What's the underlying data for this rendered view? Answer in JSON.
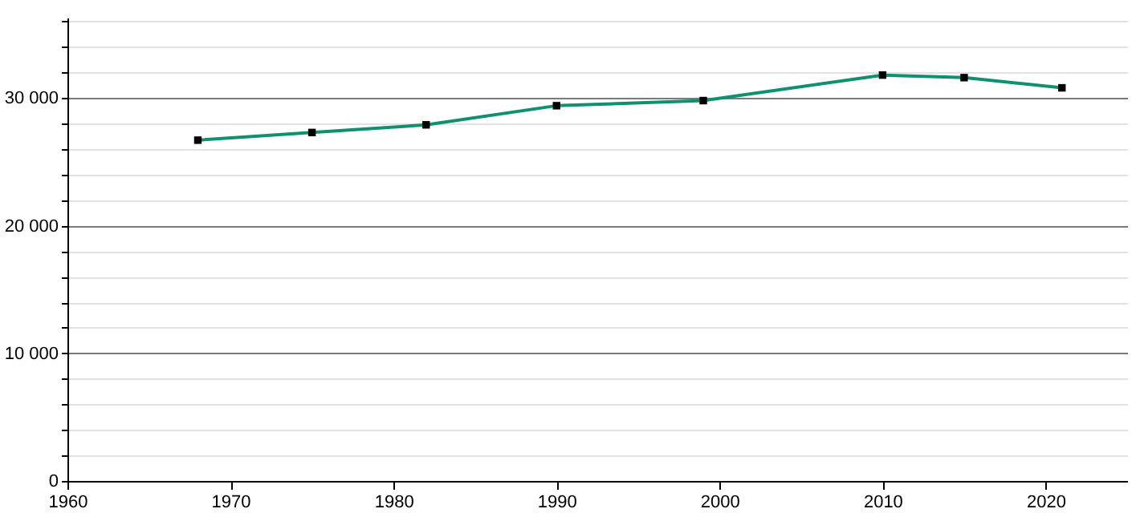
{
  "chart_data": {
    "type": "line",
    "x": [
      1968,
      1975,
      1982,
      1990,
      1999,
      2010,
      2015,
      2021
    ],
    "series": [
      {
        "color": "#0e9170",
        "values": [
          26700,
          27300,
          27900,
          29400,
          29800,
          31800,
          31600,
          30800
        ]
      }
    ],
    "xlim": [
      1960,
      2025
    ],
    "xticks": [
      1960,
      1970,
      1980,
      1990,
      2000,
      2010,
      2020
    ],
    "ylim": [
      0,
      36300
    ],
    "yticks": [
      {
        "value": 0,
        "label": "0"
      },
      {
        "value": 2000,
        "label": null
      },
      {
        "value": 4000,
        "label": null
      },
      {
        "value": 6000,
        "label": null
      },
      {
        "value": 8000,
        "label": null
      },
      {
        "value": 10000,
        "label": "10 000"
      },
      {
        "value": 12000,
        "label": null
      },
      {
        "value": 14000,
        "label": null
      },
      {
        "value": 16000,
        "label": null
      },
      {
        "value": 18000,
        "label": null
      },
      {
        "value": 20000,
        "label": "20 000"
      },
      {
        "value": 22000,
        "label": null
      },
      {
        "value": 24000,
        "label": null
      },
      {
        "value": 26000,
        "label": null
      },
      {
        "value": 28000,
        "label": null
      },
      {
        "value": 30000,
        "label": "30 000"
      },
      {
        "value": 32000,
        "label": null
      },
      {
        "value": 34000,
        "label": null
      },
      {
        "value": 36000,
        "label": null
      }
    ],
    "grid": "y",
    "marker": "square",
    "line_style": "solid"
  }
}
